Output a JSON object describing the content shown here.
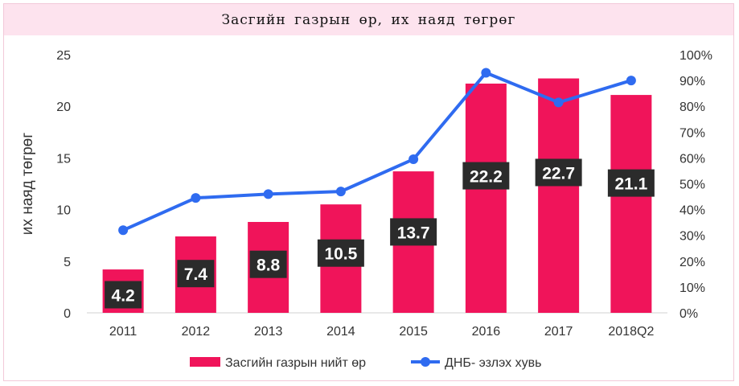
{
  "chart_data": {
    "type": "bar",
    "title": "Засгийн газрын өр, их наяд төгрөг",
    "ylabel": "их наяд төгрөг",
    "y2label": "",
    "categories": [
      "2011",
      "2012",
      "2013",
      "2014",
      "2015",
      "2016",
      "2017",
      "2018Q2"
    ],
    "ylim": [
      0,
      25
    ],
    "yticks": [
      0,
      5,
      10,
      15,
      20,
      25
    ],
    "y2lim": [
      0,
      100
    ],
    "y2ticks": [
      "0%",
      "10%",
      "20%",
      "30%",
      "40%",
      "50%",
      "60%",
      "70%",
      "80%",
      "90%",
      "100%"
    ],
    "series": [
      {
        "name": "Засгийн газрын нийт өр",
        "type": "bar",
        "axis": "left",
        "color": "#f0145a",
        "values": [
          4.2,
          7.4,
          8.8,
          10.5,
          13.7,
          22.2,
          22.7,
          21.1
        ],
        "labels": [
          "4.2",
          "7.4",
          "8.8",
          "10.5",
          "13.7",
          "22.2",
          "22.7",
          "21.1"
        ]
      },
      {
        "name": "ДНБ- эзлэх хувь",
        "type": "line",
        "axis": "right",
        "color": "#2f6bf0",
        "values": [
          32,
          44.5,
          46,
          47,
          59.5,
          93,
          81.5,
          90
        ]
      }
    ],
    "grid": false,
    "legend": "bottom",
    "label_box_color": "#2b2b2b"
  }
}
